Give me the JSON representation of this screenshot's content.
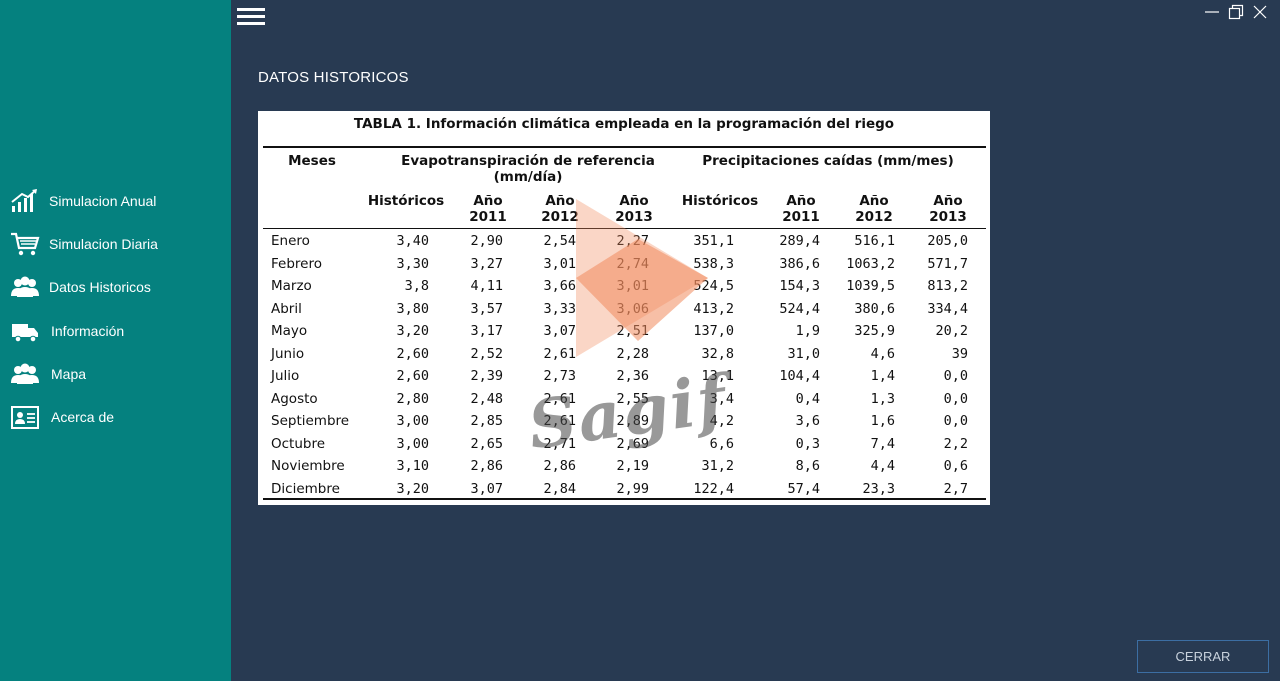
{
  "sidebar": {
    "items": [
      {
        "label": "Simulacion Anual",
        "icon": "chart-growth-icon"
      },
      {
        "label": "Simulacion Diaria",
        "icon": "shopping-cart-icon"
      },
      {
        "label": "Datos Historicos",
        "icon": "users-group-icon"
      },
      {
        "label": "Información",
        "icon": "truck-icon"
      },
      {
        "label": "Mapa",
        "icon": "users-group-icon"
      },
      {
        "label": "Acerca de",
        "icon": "id-card-icon"
      }
    ]
  },
  "page": {
    "title": "DATOS HISTORICOS",
    "close_label": "CERRAR"
  },
  "table": {
    "caption": "TABLA 1. Información climática empleada en la programación del riego",
    "month_header": "Meses",
    "eto_header": "Evapotranspiración de referencia (mm/día)",
    "precip_header": "Precipitaciones caídas (mm/mes)",
    "sub_headers": [
      "Históricos",
      "Año 2011",
      "Año 2012",
      "Año 2013",
      "Históricos",
      "Año 2011",
      "Año 2012",
      "Año 2013"
    ],
    "rows": [
      [
        "Enero",
        "3,40",
        "2,90",
        "2,54",
        "2,27",
        "351,1",
        "289,4",
        "516,1",
        "205,0"
      ],
      [
        "Febrero",
        "3,30",
        "3,27",
        "3,01",
        "2,74",
        "538,3",
        "386,6",
        "1063,2",
        "571,7"
      ],
      [
        "Marzo",
        "3,8",
        "4,11",
        "3,66",
        "3,01",
        "524,5",
        "154,3",
        "1039,5",
        "813,2"
      ],
      [
        "Abril",
        "3,80",
        "3,57",
        "3,33",
        "3,06",
        "413,2",
        "524,4",
        "380,6",
        "334,4"
      ],
      [
        "Mayo",
        "3,20",
        "3,17",
        "3,07",
        "2,51",
        "137,0",
        "1,9",
        "325,9",
        "20,2"
      ],
      [
        "Junio",
        "2,60",
        "2,52",
        "2,61",
        "2,28",
        "32,8",
        "31,0",
        "4,6",
        "39"
      ],
      [
        "Julio",
        "2,60",
        "2,39",
        "2,73",
        "2,36",
        "13,1",
        "104,4",
        "1,4",
        "0,0"
      ],
      [
        "Agosto",
        "2,80",
        "2,48",
        "2,61",
        "2,55",
        "3,4",
        "0,4",
        "1,3",
        "0,0"
      ],
      [
        "Septiembre",
        "3,00",
        "2,85",
        "2,61",
        "2,89",
        "4,2",
        "3,6",
        "1,6",
        "0,0"
      ],
      [
        "Octubre",
        "3,00",
        "2,65",
        "2,71",
        "2,69",
        "6,6",
        "0,3",
        "7,4",
        "2,2"
      ],
      [
        "Noviembre",
        "3,10",
        "2,86",
        "2,86",
        "2,19",
        "31,2",
        "8,6",
        "4,4",
        "0,6"
      ],
      [
        "Diciembre",
        "3,20",
        "3,07",
        "2,84",
        "2,99",
        "122,4",
        "57,4",
        "23,3",
        "2,7"
      ]
    ],
    "watermark_text": "Sagif"
  },
  "colors": {
    "sidebar_bg": "#05817f",
    "main_bg": "#283a52",
    "watermark_orange": "#f08a5d"
  }
}
